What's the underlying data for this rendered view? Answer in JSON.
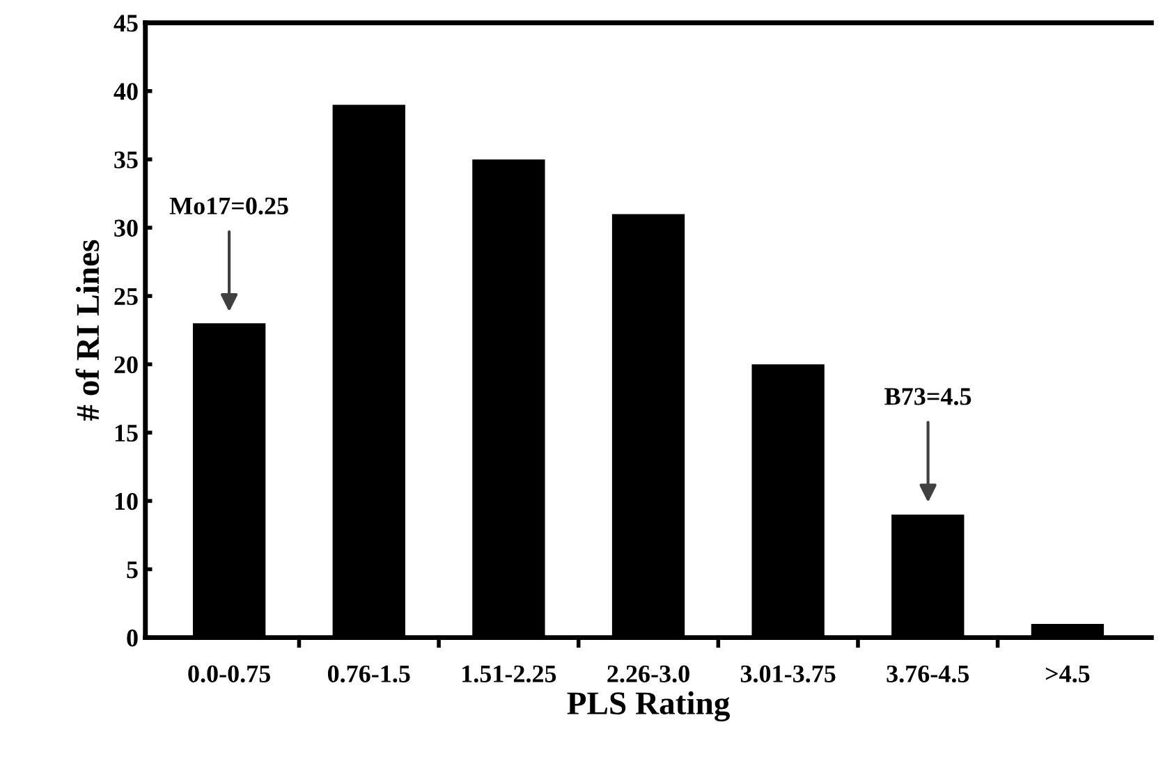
{
  "chart_data": {
    "type": "bar",
    "xlabel": "PLS Rating",
    "ylabel": "# of RI Lines",
    "categories": [
      "0.0-0.75",
      "0.76-1.5",
      "1.51-2.25",
      "2.26-3.0",
      "3.01-3.75",
      "3.76-4.5",
      ">4.5"
    ],
    "values": [
      23,
      39,
      35,
      31,
      20,
      9,
      1
    ],
    "color": "#000000",
    "ylim": [
      0,
      45
    ],
    "yticks": [
      0,
      5,
      10,
      15,
      20,
      25,
      30,
      35,
      40,
      45
    ],
    "grid": false,
    "annotations": [
      "Mo17=0.25",
      "B73=4.5"
    ]
  }
}
